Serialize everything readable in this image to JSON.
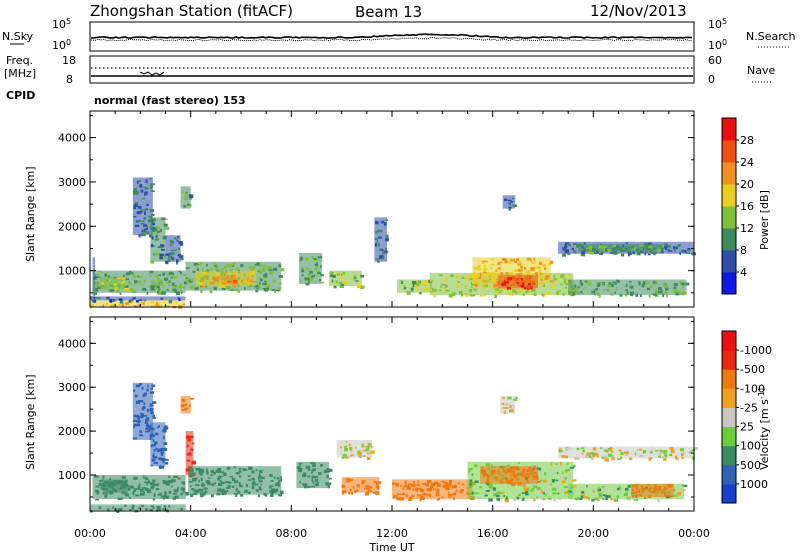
{
  "header": {
    "title": "Zhongshan Station (fitACF)",
    "beam": "Beam 13",
    "date": "12/Nov/2013"
  },
  "top_panels": {
    "nsky_label": "N.Sky",
    "nsearch_label": "N.Search",
    "noise_ticks_left": [
      "10^5",
      "10^0"
    ],
    "noise_ticks_right": [
      "10^5",
      "10^0"
    ],
    "freq_label_1": "Freq.",
    "freq_label_2": "[MHz]",
    "freq_ticks": [
      "18",
      "8"
    ],
    "nave_label": "Nave",
    "nave_ticks": [
      "60",
      "0"
    ],
    "cpid_label": "CPID",
    "cpid_text": "normal (fast stereo) 153"
  },
  "chart_data": [
    {
      "type": "heatmap",
      "name": "power",
      "ylabel": "Slant Range [km]",
      "xlabel": "Time UT",
      "xlim": [
        0,
        24
      ],
      "ylim": [
        180,
        4600
      ],
      "x_ticks": [
        "00:00",
        "04:00",
        "08:00",
        "12:00",
        "16:00",
        "20:00",
        "00:00"
      ],
      "y_ticks": [
        1000,
        2000,
        3000,
        4000
      ],
      "colorbar": {
        "label": "Power [dB]",
        "ticks": [
          "4",
          "8",
          "12",
          "16",
          "20",
          "24",
          "28"
        ],
        "colors": [
          "#1018e8",
          "#2d4fa8",
          "#3e8a5c",
          "#7fbf3a",
          "#e8d020",
          "#f09020",
          "#f05010",
          "#e81010"
        ]
      },
      "regions": [
        {
          "t0": 0.0,
          "t1": 3.8,
          "r0": 200,
          "r1": 330,
          "v": 20
        },
        {
          "t0": 0.0,
          "t1": 3.8,
          "r0": 330,
          "r1": 420,
          "v": 6
        },
        {
          "t0": 0.1,
          "t1": 0.2,
          "r0": 420,
          "r1": 1300,
          "v": 8
        },
        {
          "t0": 0.1,
          "t1": 3.8,
          "r0": 500,
          "r1": 1000,
          "v": 12
        },
        {
          "t0": 0.4,
          "t1": 1.4,
          "r0": 580,
          "r1": 860,
          "v": 16
        },
        {
          "t0": 1.7,
          "t1": 2.5,
          "r0": 1800,
          "r1": 3100,
          "v": 8
        },
        {
          "t0": 2.4,
          "t1": 3.0,
          "r0": 1200,
          "r1": 2200,
          "v": 10
        },
        {
          "t0": 3.0,
          "t1": 3.6,
          "r0": 1200,
          "r1": 1800,
          "v": 8
        },
        {
          "t0": 3.6,
          "t1": 4.0,
          "r0": 2400,
          "r1": 2900,
          "v": 10
        },
        {
          "t0": 3.8,
          "t1": 7.6,
          "r0": 550,
          "r1": 1200,
          "v": 12
        },
        {
          "t0": 4.2,
          "t1": 6.6,
          "r0": 650,
          "r1": 1000,
          "v": 18
        },
        {
          "t0": 5.2,
          "t1": 5.8,
          "r0": 700,
          "r1": 900,
          "v": 24
        },
        {
          "t0": 8.3,
          "t1": 9.2,
          "r0": 700,
          "r1": 1400,
          "v": 12
        },
        {
          "t0": 9.5,
          "t1": 10.8,
          "r0": 650,
          "r1": 1000,
          "v": 14
        },
        {
          "t0": 11.3,
          "t1": 11.8,
          "r0": 1200,
          "r1": 2200,
          "v": 8
        },
        {
          "t0": 12.2,
          "t1": 13.6,
          "r0": 500,
          "r1": 800,
          "v": 14
        },
        {
          "t0": 13.5,
          "t1": 19.2,
          "r0": 450,
          "r1": 950,
          "v": 16
        },
        {
          "t0": 15.2,
          "t1": 18.3,
          "r0": 700,
          "r1": 1300,
          "v": 20
        },
        {
          "t0": 16.2,
          "t1": 17.8,
          "r0": 600,
          "r1": 900,
          "v": 28
        },
        {
          "t0": 16.4,
          "t1": 16.9,
          "r0": 2400,
          "r1": 2700,
          "v": 8
        },
        {
          "t0": 18.6,
          "t1": 24.0,
          "r0": 1380,
          "r1": 1650,
          "v": 8
        },
        {
          "t0": 19.4,
          "t1": 22.8,
          "r0": 1420,
          "r1": 1600,
          "v": 12
        },
        {
          "t0": 19.0,
          "t1": 23.7,
          "r0": 450,
          "r1": 800,
          "v": 12
        }
      ]
    },
    {
      "type": "heatmap",
      "name": "velocity",
      "ylabel": "Slant Range [km]",
      "xlabel": "Time UT",
      "xlim": [
        0,
        24
      ],
      "ylim": [
        180,
        4600
      ],
      "x_ticks": [
        "00:00",
        "04:00",
        "08:00",
        "12:00",
        "16:00",
        "20:00",
        "00:00"
      ],
      "y_ticks": [
        1000,
        2000,
        3000,
        4000
      ],
      "colorbar": {
        "label": "Velocity [m s^-1]",
        "ticks": [
          "1000",
          "500",
          "100",
          "25",
          "-25",
          "-100",
          "-500",
          "-1000"
        ],
        "colors": [
          "#1840c8",
          "#2f62b4",
          "#3b8a62",
          "#6ccd3a",
          "#c8c8c0",
          "#f0a020",
          "#f07810",
          "#e82810",
          "#e81010"
        ]
      },
      "regions": [
        {
          "t0": 0.0,
          "t1": 3.8,
          "r0": 200,
          "r1": 330,
          "v": 300
        },
        {
          "t0": 0.1,
          "t1": 3.8,
          "r0": 450,
          "r1": 1000,
          "v": 300
        },
        {
          "t0": 0.5,
          "t1": 1.5,
          "r0": 600,
          "r1": 900,
          "v": 200
        },
        {
          "t0": 1.7,
          "t1": 2.5,
          "r0": 1800,
          "r1": 3100,
          "v": 700
        },
        {
          "t0": 2.4,
          "t1": 3.0,
          "r0": 1200,
          "r1": 2200,
          "v": 700
        },
        {
          "t0": 3.6,
          "t1": 4.0,
          "r0": 2400,
          "r1": 2800,
          "v": -300
        },
        {
          "t0": 3.8,
          "t1": 4.1,
          "r0": 1000,
          "r1": 2000,
          "v": -700
        },
        {
          "t0": 3.9,
          "t1": 7.6,
          "r0": 550,
          "r1": 1200,
          "v": 300
        },
        {
          "t0": 8.2,
          "t1": 9.5,
          "r0": 700,
          "r1": 1300,
          "v": 200
        },
        {
          "t0": 9.8,
          "t1": 11.2,
          "r0": 1400,
          "r1": 1800,
          "v": 0
        },
        {
          "t0": 10.0,
          "t1": 11.5,
          "r0": 600,
          "r1": 950,
          "v": -300
        },
        {
          "t0": 12.0,
          "t1": 15.2,
          "r0": 450,
          "r1": 900,
          "v": -300
        },
        {
          "t0": 15.0,
          "t1": 19.2,
          "r0": 450,
          "r1": 1300,
          "v": 50
        },
        {
          "t0": 15.5,
          "t1": 17.8,
          "r0": 800,
          "r1": 1200,
          "v": -250
        },
        {
          "t0": 16.3,
          "t1": 16.9,
          "r0": 2400,
          "r1": 2800,
          "v": 0
        },
        {
          "t0": 18.6,
          "t1": 24.0,
          "r0": 1380,
          "r1": 1650,
          "v": 0
        },
        {
          "t0": 19.0,
          "t1": 23.6,
          "r0": 450,
          "r1": 800,
          "v": 60
        },
        {
          "t0": 21.5,
          "t1": 23.2,
          "r0": 500,
          "r1": 800,
          "v": -300
        }
      ]
    }
  ]
}
